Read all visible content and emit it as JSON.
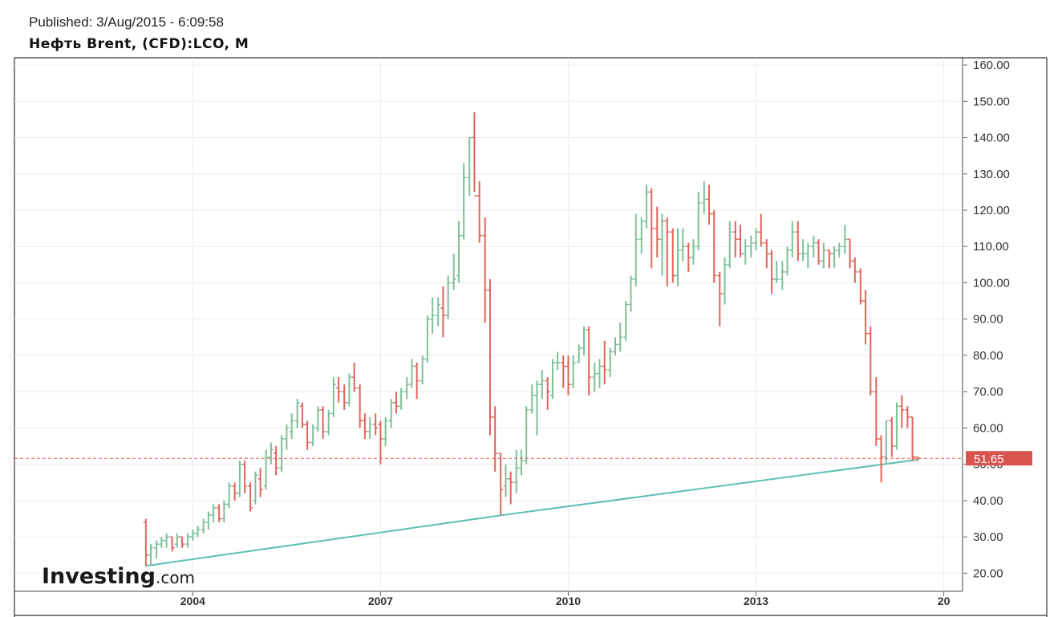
{
  "header": {
    "published": "Published: 3/Aug/2015 - 6:09:58",
    "symbol": "Нефть Brent, (CFD):LCO, M"
  },
  "watermark": {
    "brand": "Investing",
    "suffix": ".com"
  },
  "colors": {
    "up": "#7fbf9a",
    "down": "#e0645a",
    "trendline": "#5dbfb4",
    "price_line": "#e0645a",
    "price_badge": "#d9534f",
    "grid": "#ececec"
  },
  "chart_data": {
    "type": "ohlc",
    "title": "Нефть Brent, (CFD):LCO, M",
    "xlabel": "",
    "ylabel": "",
    "ylim": [
      15,
      162
    ],
    "y_ticks": [
      "20.00",
      "30.00",
      "40.00",
      "50.00",
      "60.00",
      "70.00",
      "80.00",
      "90.00",
      "100.00",
      "110.00",
      "120.00",
      "130.00",
      "140.00",
      "150.00",
      "160.00"
    ],
    "x_ticks": [
      {
        "label": "2004",
        "t": 2004.0
      },
      {
        "label": "2007",
        "t": 2007.0
      },
      {
        "label": "2010",
        "t": 2010.0
      },
      {
        "label": "2013",
        "t": 2013.0
      },
      {
        "label": "20",
        "t": 2016.0
      }
    ],
    "x_range": [
      2001.15,
      2016.3
    ],
    "last_price": "51.65",
    "last_price_value": 51.65,
    "grid": true,
    "trendline": [
      {
        "t": 2003.25,
        "v": 22.0
      },
      {
        "t": 2008.95,
        "v": 36.0
      },
      {
        "t": 2015.6,
        "v": 51.3
      }
    ],
    "bars": [
      [
        2003.25,
        34,
        35,
        22,
        25
      ],
      [
        2003.33,
        25,
        28,
        22,
        27
      ],
      [
        2003.42,
        27,
        29,
        24,
        28
      ],
      [
        2003.5,
        28,
        30,
        27,
        29
      ],
      [
        2003.58,
        29,
        31,
        27,
        30
      ],
      [
        2003.67,
        30,
        30,
        26,
        27
      ],
      [
        2003.75,
        28,
        31,
        27,
        30
      ],
      [
        2003.83,
        30,
        30,
        27,
        28
      ],
      [
        2003.92,
        28,
        31,
        27,
        30
      ],
      [
        2004.0,
        30,
        32,
        29,
        31
      ],
      [
        2004.08,
        31,
        33,
        30,
        32
      ],
      [
        2004.17,
        32,
        35,
        31,
        34
      ],
      [
        2004.25,
        34,
        37,
        32,
        36
      ],
      [
        2004.33,
        36,
        39,
        34,
        38
      ],
      [
        2004.42,
        38,
        39,
        34,
        35
      ],
      [
        2004.5,
        35,
        40,
        34,
        39
      ],
      [
        2004.58,
        39,
        45,
        38,
        44
      ],
      [
        2004.67,
        44,
        45,
        40,
        42
      ],
      [
        2004.75,
        42,
        51,
        41,
        50
      ],
      [
        2004.83,
        50,
        51,
        42,
        44
      ],
      [
        2004.92,
        44,
        45,
        37,
        38
      ],
      [
        2005.0,
        40,
        48,
        39,
        47
      ],
      [
        2005.08,
        46,
        49,
        41,
        43
      ],
      [
        2005.17,
        44,
        54,
        43,
        52
      ],
      [
        2005.25,
        52,
        56,
        50,
        54
      ],
      [
        2005.33,
        53,
        55,
        47,
        49
      ],
      [
        2005.42,
        49,
        58,
        48,
        57
      ],
      [
        2005.5,
        57,
        61,
        54,
        60
      ],
      [
        2005.58,
        59,
        64,
        57,
        62
      ],
      [
        2005.67,
        62,
        68,
        60,
        67
      ],
      [
        2005.75,
        66,
        67,
        60,
        61
      ],
      [
        2005.83,
        61,
        62,
        54,
        56
      ],
      [
        2005.92,
        56,
        61,
        55,
        60
      ],
      [
        2006.0,
        60,
        66,
        59,
        65
      ],
      [
        2006.08,
        65,
        66,
        57,
        59
      ],
      [
        2006.17,
        59,
        65,
        58,
        64
      ],
      [
        2006.25,
        64,
        74,
        63,
        72
      ],
      [
        2006.33,
        71,
        74,
        67,
        70
      ],
      [
        2006.42,
        70,
        72,
        65,
        67
      ],
      [
        2006.5,
        67,
        75,
        66,
        74
      ],
      [
        2006.58,
        74,
        78,
        70,
        71
      ],
      [
        2006.67,
        71,
        72,
        60,
        62
      ],
      [
        2006.75,
        62,
        64,
        57,
        59
      ],
      [
        2006.83,
        59,
        63,
        57,
        61
      ],
      [
        2006.92,
        61,
        64,
        58,
        60
      ],
      [
        2007.0,
        61,
        62,
        50,
        57
      ],
      [
        2007.08,
        57,
        63,
        55,
        62
      ],
      [
        2007.17,
        62,
        68,
        60,
        67
      ],
      [
        2007.25,
        67,
        70,
        64,
        66
      ],
      [
        2007.33,
        66,
        71,
        65,
        70
      ],
      [
        2007.42,
        70,
        74,
        68,
        72
      ],
      [
        2007.5,
        72,
        79,
        71,
        77
      ],
      [
        2007.58,
        77,
        78,
        68,
        73
      ],
      [
        2007.67,
        73,
        80,
        72,
        79
      ],
      [
        2007.75,
        79,
        91,
        78,
        90
      ],
      [
        2007.83,
        90,
        96,
        86,
        91
      ],
      [
        2007.92,
        91,
        96,
        88,
        94
      ],
      [
        2008.0,
        93,
        99,
        85,
        91
      ],
      [
        2008.08,
        91,
        102,
        90,
        100
      ],
      [
        2008.17,
        100,
        108,
        98,
        101
      ],
      [
        2008.25,
        102,
        117,
        100,
        113
      ],
      [
        2008.33,
        113,
        133,
        112,
        129
      ],
      [
        2008.42,
        129,
        140,
        124,
        140
      ],
      [
        2008.5,
        140,
        147,
        125,
        124
      ],
      [
        2008.58,
        124,
        128,
        111,
        113
      ],
      [
        2008.67,
        113,
        118,
        89,
        98
      ],
      [
        2008.75,
        98,
        101,
        58,
        63
      ],
      [
        2008.83,
        63,
        66,
        48,
        53
      ],
      [
        2008.92,
        53,
        53,
        36,
        43
      ],
      [
        2009.0,
        44,
        50,
        41,
        46
      ],
      [
        2009.08,
        46,
        48,
        39,
        45
      ],
      [
        2009.17,
        45,
        54,
        42,
        49
      ],
      [
        2009.25,
        49,
        54,
        47,
        51
      ],
      [
        2009.33,
        51,
        66,
        50,
        65
      ],
      [
        2009.42,
        65,
        72,
        64,
        69
      ],
      [
        2009.5,
        69,
        73,
        58,
        72
      ],
      [
        2009.58,
        72,
        76,
        68,
        73
      ],
      [
        2009.67,
        73,
        74,
        65,
        70
      ],
      [
        2009.75,
        69,
        79,
        68,
        78
      ],
      [
        2009.83,
        78,
        81,
        76,
        78
      ],
      [
        2009.92,
        78,
        80,
        71,
        77
      ],
      [
        2010.0,
        77,
        80,
        69,
        72
      ],
      [
        2010.08,
        72,
        80,
        71,
        78
      ],
      [
        2010.17,
        78,
        83,
        78,
        82
      ],
      [
        2010.25,
        82,
        88,
        80,
        87
      ],
      [
        2010.33,
        87,
        88,
        69,
        74
      ],
      [
        2010.42,
        74,
        78,
        70,
        75
      ],
      [
        2010.5,
        75,
        79,
        71,
        77
      ],
      [
        2010.58,
        77,
        84,
        72,
        76
      ],
      [
        2010.67,
        76,
        82,
        74,
        81
      ],
      [
        2010.75,
        81,
        85,
        80,
        83
      ],
      [
        2010.83,
        83,
        89,
        81,
        85
      ],
      [
        2010.92,
        85,
        95,
        84,
        94
      ],
      [
        2011.0,
        94,
        102,
        92,
        101
      ],
      [
        2011.08,
        101,
        119,
        99,
        112
      ],
      [
        2011.17,
        112,
        118,
        108,
        117
      ],
      [
        2011.25,
        117,
        127,
        115,
        125
      ],
      [
        2011.33,
        125,
        126,
        104,
        115
      ],
      [
        2011.42,
        115,
        121,
        107,
        112
      ],
      [
        2011.5,
        112,
        119,
        102,
        117
      ],
      [
        2011.58,
        117,
        118,
        99,
        114
      ],
      [
        2011.67,
        114,
        115,
        100,
        102
      ],
      [
        2011.75,
        102,
        115,
        99,
        109
      ],
      [
        2011.83,
        109,
        115,
        106,
        110
      ],
      [
        2011.92,
        110,
        111,
        103,
        107
      ],
      [
        2012.0,
        107,
        112,
        105,
        110
      ],
      [
        2012.08,
        110,
        125,
        109,
        122
      ],
      [
        2012.17,
        122,
        128,
        119,
        123
      ],
      [
        2012.25,
        123,
        127,
        116,
        119
      ],
      [
        2012.33,
        119,
        120,
        100,
        102
      ],
      [
        2012.42,
        102,
        103,
        88,
        97
      ],
      [
        2012.5,
        97,
        107,
        94,
        105
      ],
      [
        2012.58,
        105,
        117,
        104,
        114
      ],
      [
        2012.67,
        114,
        117,
        107,
        112
      ],
      [
        2012.75,
        112,
        116,
        107,
        108
      ],
      [
        2012.83,
        108,
        112,
        105,
        110
      ],
      [
        2012.92,
        110,
        113,
        107,
        111
      ],
      [
        2013.0,
        111,
        115,
        109,
        114
      ],
      [
        2013.08,
        114,
        119,
        110,
        111
      ],
      [
        2013.17,
        111,
        112,
        104,
        108
      ],
      [
        2013.25,
        108,
        109,
        97,
        101
      ],
      [
        2013.33,
        101,
        106,
        100,
        101
      ],
      [
        2013.42,
        101,
        106,
        98,
        103
      ],
      [
        2013.5,
        103,
        110,
        102,
        109
      ],
      [
        2013.58,
        109,
        117,
        107,
        114
      ],
      [
        2013.67,
        114,
        117,
        106,
        108
      ],
      [
        2013.75,
        108,
        112,
        106,
        108
      ],
      [
        2013.83,
        108,
        111,
        104,
        110
      ],
      [
        2013.92,
        110,
        113,
        107,
        111
      ],
      [
        2014.0,
        111,
        112,
        105,
        106
      ],
      [
        2014.08,
        106,
        111,
        104,
        109
      ],
      [
        2014.17,
        109,
        109,
        104,
        108
      ],
      [
        2014.25,
        108,
        110,
        104,
        109
      ],
      [
        2014.33,
        109,
        111,
        107,
        110
      ],
      [
        2014.42,
        110,
        116,
        108,
        112
      ],
      [
        2014.5,
        112,
        112,
        104,
        106
      ],
      [
        2014.58,
        106,
        107,
        100,
        103
      ],
      [
        2014.67,
        103,
        104,
        94,
        95
      ],
      [
        2014.75,
        95,
        98,
        83,
        86
      ],
      [
        2014.83,
        86,
        88,
        69,
        70
      ],
      [
        2014.92,
        70,
        74,
        55,
        57
      ],
      [
        2015.0,
        57,
        58,
        45,
        52
      ],
      [
        2015.08,
        52,
        62,
        50,
        62
      ],
      [
        2015.17,
        62,
        63,
        52,
        55
      ],
      [
        2015.25,
        55,
        67,
        54,
        66
      ],
      [
        2015.33,
        66,
        69,
        60,
        65
      ],
      [
        2015.42,
        65,
        66,
        60,
        63
      ],
      [
        2015.5,
        63,
        63,
        51,
        52
      ],
      [
        2015.58,
        52,
        52,
        51,
        51.65
      ]
    ]
  }
}
